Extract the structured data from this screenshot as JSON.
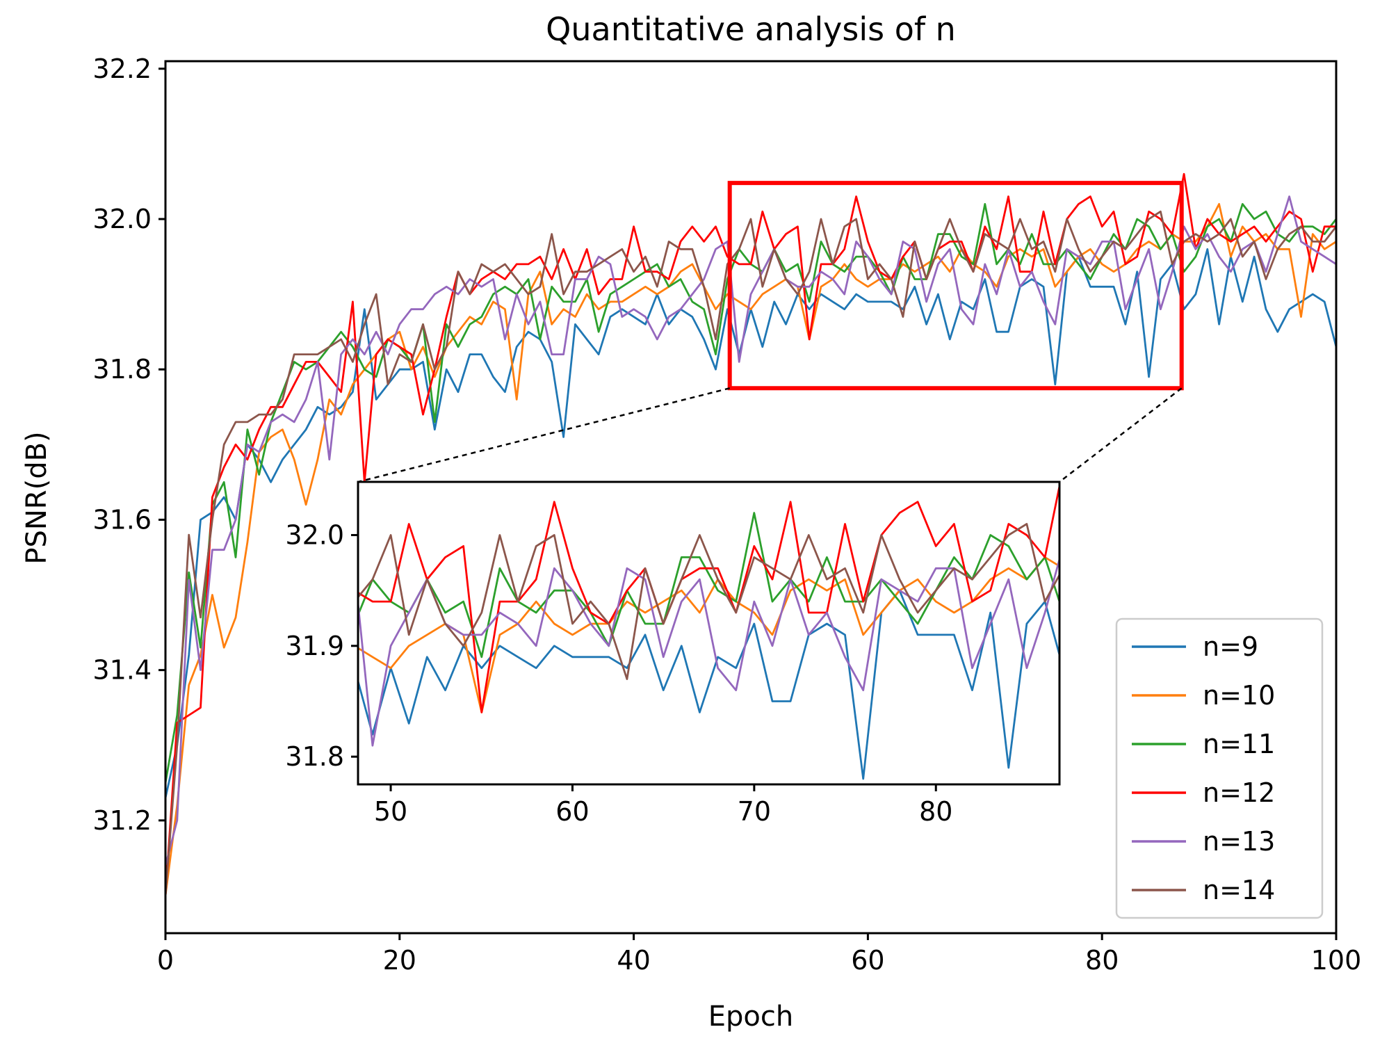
{
  "chart_data": {
    "type": "line",
    "title": "Quantitative analysis of n",
    "xlabel": "Epoch",
    "ylabel": "PSNR(dB)",
    "xlim": [
      0,
      100
    ],
    "ylim": [
      31.05,
      32.21
    ],
    "xticks": [
      0,
      20,
      40,
      60,
      80,
      100
    ],
    "yticks": [
      31.2,
      31.4,
      31.6,
      31.8,
      32.0,
      32.2
    ],
    "grid": false,
    "legend_position": "lower right",
    "zoom_region": {
      "x": [
        48.2,
        86.8
      ],
      "y": [
        31.775,
        32.048
      ]
    },
    "inset": {
      "xlim": [
        48.2,
        86.8
      ],
      "ylim": [
        31.775,
        32.048
      ],
      "xticks": [
        50,
        60,
        70,
        80
      ],
      "yticks": [
        31.8,
        31.9,
        32.0
      ]
    },
    "series": [
      {
        "name": "n=9",
        "color": "#1f77b4",
        "values": [
          31.23,
          31.3,
          31.42,
          31.6,
          31.61,
          31.63,
          31.6,
          31.7,
          31.68,
          31.65,
          31.68,
          31.7,
          31.72,
          31.75,
          31.74,
          31.75,
          31.77,
          31.88,
          31.76,
          31.78,
          31.8,
          31.8,
          31.81,
          31.72,
          31.8,
          31.77,
          31.82,
          31.82,
          31.79,
          31.77,
          31.83,
          31.85,
          31.84,
          31.81,
          31.71,
          31.86,
          31.84,
          31.82,
          31.87,
          31.88,
          31.87,
          31.86,
          31.9,
          31.86,
          31.88,
          31.87,
          31.84,
          31.8,
          31.88,
          31.82,
          31.88,
          31.83,
          31.89,
          31.86,
          31.9,
          31.88,
          31.9,
          31.89,
          31.88,
          31.9,
          31.89,
          31.89,
          31.89,
          31.88,
          31.91,
          31.86,
          31.9,
          31.84,
          31.89,
          31.88,
          31.92,
          31.85,
          31.85,
          31.91,
          31.92,
          31.91,
          31.78,
          31.93,
          31.95,
          31.91,
          31.91,
          31.91,
          31.86,
          31.93,
          31.79,
          31.92,
          31.94,
          31.88,
          31.9,
          31.96,
          31.86,
          31.95,
          31.89,
          31.95,
          31.88,
          31.85,
          31.88,
          31.89,
          31.9,
          31.89,
          31.83
        ]
      },
      {
        "name": "n=10",
        "color": "#ff7f0e",
        "values": [
          31.1,
          31.22,
          31.38,
          31.42,
          31.5,
          31.43,
          31.47,
          31.57,
          31.69,
          31.71,
          31.72,
          31.68,
          31.62,
          31.68,
          31.76,
          31.74,
          31.78,
          31.8,
          31.82,
          31.84,
          31.85,
          31.8,
          31.83,
          31.79,
          31.83,
          31.85,
          31.87,
          31.86,
          31.89,
          31.88,
          31.76,
          31.9,
          31.93,
          31.86,
          31.88,
          31.87,
          31.9,
          31.88,
          31.89,
          31.89,
          31.9,
          31.91,
          31.9,
          31.91,
          31.93,
          31.94,
          31.91,
          31.88,
          31.9,
          31.89,
          31.88,
          31.9,
          31.91,
          31.92,
          31.91,
          31.84,
          31.91,
          31.92,
          31.94,
          31.92,
          31.91,
          31.92,
          31.92,
          31.94,
          31.93,
          31.94,
          31.95,
          31.93,
          31.96,
          31.94,
          31.93,
          31.91,
          31.95,
          31.96,
          31.95,
          31.96,
          31.91,
          31.93,
          31.95,
          31.96,
          31.94,
          31.93,
          31.94,
          31.96,
          31.97,
          31.96,
          31.98,
          31.97,
          31.97,
          31.99,
          32.02,
          31.95,
          31.99,
          31.97,
          31.98,
          31.96,
          31.96,
          31.87,
          31.98,
          31.96,
          31.97
        ]
      },
      {
        "name": "n=11",
        "color": "#2ca02c",
        "values": [
          31.25,
          31.34,
          31.53,
          31.43,
          31.62,
          31.65,
          31.55,
          31.72,
          31.66,
          31.73,
          31.77,
          31.81,
          31.8,
          31.81,
          31.83,
          31.85,
          31.83,
          31.8,
          31.79,
          31.84,
          31.83,
          31.81,
          31.86,
          31.73,
          31.86,
          31.83,
          31.86,
          31.87,
          31.9,
          31.91,
          31.9,
          31.92,
          31.84,
          31.91,
          31.89,
          31.89,
          31.92,
          31.85,
          31.9,
          31.91,
          31.92,
          31.93,
          31.94,
          31.91,
          31.92,
          31.89,
          31.88,
          31.82,
          31.92,
          31.96,
          31.94,
          31.93,
          31.96,
          31.93,
          31.94,
          31.89,
          31.97,
          31.94,
          31.93,
          31.95,
          31.95,
          31.93,
          31.9,
          31.95,
          31.92,
          31.92,
          31.98,
          31.98,
          31.95,
          31.94,
          32.02,
          31.94,
          31.96,
          31.94,
          31.98,
          31.94,
          31.94,
          31.96,
          31.94,
          31.92,
          31.95,
          31.98,
          31.96,
          32.0,
          31.99,
          31.96,
          31.98,
          31.93,
          31.95,
          31.99,
          32.0,
          31.97,
          32.02,
          32.0,
          32.01,
          31.98,
          31.97,
          31.99,
          31.99,
          31.98,
          32.0
        ]
      },
      {
        "name": "n=12",
        "color": "#ff0000",
        "values": [
          31.1,
          31.33,
          31.34,
          31.35,
          31.63,
          31.67,
          31.7,
          31.68,
          31.72,
          31.75,
          31.75,
          31.78,
          31.81,
          31.81,
          31.79,
          31.77,
          31.89,
          31.65,
          31.82,
          31.84,
          31.83,
          31.82,
          31.74,
          31.8,
          31.87,
          31.93,
          31.9,
          31.92,
          31.93,
          31.92,
          31.94,
          31.94,
          31.95,
          31.92,
          31.96,
          31.92,
          31.96,
          31.9,
          31.92,
          31.92,
          31.99,
          31.93,
          31.93,
          31.92,
          31.97,
          31.99,
          31.97,
          31.99,
          31.95,
          31.94,
          31.94,
          32.01,
          31.96,
          31.98,
          31.99,
          31.84,
          31.94,
          31.94,
          31.96,
          32.03,
          31.97,
          31.93,
          31.92,
          31.95,
          31.97,
          31.92,
          31.96,
          31.97,
          31.97,
          31.93,
          31.99,
          31.96,
          32.03,
          31.93,
          31.93,
          32.01,
          31.94,
          32.0,
          32.02,
          32.03,
          31.99,
          32.01,
          31.94,
          31.95,
          32.01,
          32.0,
          31.98,
          32.06,
          31.96,
          32.0,
          31.98,
          31.97,
          31.98,
          31.99,
          31.97,
          31.99,
          32.01,
          32.0,
          31.93,
          31.99,
          31.99
        ]
      },
      {
        "name": "n=13",
        "color": "#9467bd",
        "values": [
          31.14,
          31.2,
          31.52,
          31.4,
          31.56,
          31.56,
          31.6,
          31.7,
          31.69,
          31.73,
          31.74,
          31.73,
          31.76,
          31.81,
          31.68,
          31.82,
          31.84,
          31.82,
          31.85,
          31.82,
          31.86,
          31.88,
          31.88,
          31.9,
          31.91,
          31.9,
          31.92,
          31.91,
          31.92,
          31.84,
          31.9,
          31.86,
          31.89,
          31.82,
          31.82,
          31.92,
          31.92,
          31.95,
          31.94,
          31.87,
          31.88,
          31.87,
          31.84,
          31.87,
          31.88,
          31.9,
          31.92,
          31.96,
          31.97,
          31.81,
          31.9,
          31.93,
          31.96,
          31.92,
          31.91,
          31.91,
          31.93,
          31.92,
          31.9,
          31.97,
          31.95,
          31.92,
          31.9,
          31.97,
          31.96,
          31.89,
          31.94,
          31.96,
          31.88,
          31.86,
          31.94,
          31.9,
          31.96,
          31.91,
          31.93,
          31.89,
          31.86,
          31.96,
          31.95,
          31.94,
          31.97,
          31.97,
          31.88,
          31.92,
          31.96,
          31.88,
          31.93,
          31.99,
          31.96,
          31.98,
          31.95,
          31.93,
          31.96,
          31.97,
          31.93,
          31.98,
          32.03,
          31.97,
          31.96,
          31.95,
          31.94
        ]
      },
      {
        "name": "n=14",
        "color": "#8c564b",
        "values": [
          31.1,
          31.3,
          31.58,
          31.47,
          31.6,
          31.7,
          31.73,
          31.73,
          31.74,
          31.74,
          31.76,
          31.82,
          31.82,
          31.82,
          31.83,
          31.84,
          31.81,
          31.86,
          31.9,
          31.78,
          31.82,
          31.81,
          31.86,
          31.8,
          31.83,
          31.93,
          31.9,
          31.94,
          31.93,
          31.94,
          31.92,
          31.9,
          31.91,
          31.98,
          31.9,
          31.93,
          31.93,
          31.94,
          31.95,
          31.96,
          31.93,
          31.95,
          31.91,
          31.97,
          31.96,
          31.96,
          31.91,
          31.84,
          31.94,
          31.96,
          32.0,
          31.91,
          31.96,
          31.92,
          31.9,
          31.93,
          32.0,
          31.94,
          31.99,
          32.0,
          31.92,
          31.94,
          31.92,
          31.87,
          31.97,
          31.92,
          31.96,
          32.0,
          31.96,
          31.93,
          31.98,
          31.97,
          31.96,
          32.0,
          31.96,
          31.97,
          31.93,
          32.0,
          31.96,
          31.93,
          31.95,
          31.97,
          31.96,
          31.98,
          32.0,
          32.01,
          31.94,
          31.97,
          31.98,
          31.97,
          31.98,
          32.0,
          31.95,
          31.97,
          31.92,
          31.96,
          31.98,
          31.99,
          31.97,
          31.97,
          31.99
        ]
      }
    ]
  }
}
